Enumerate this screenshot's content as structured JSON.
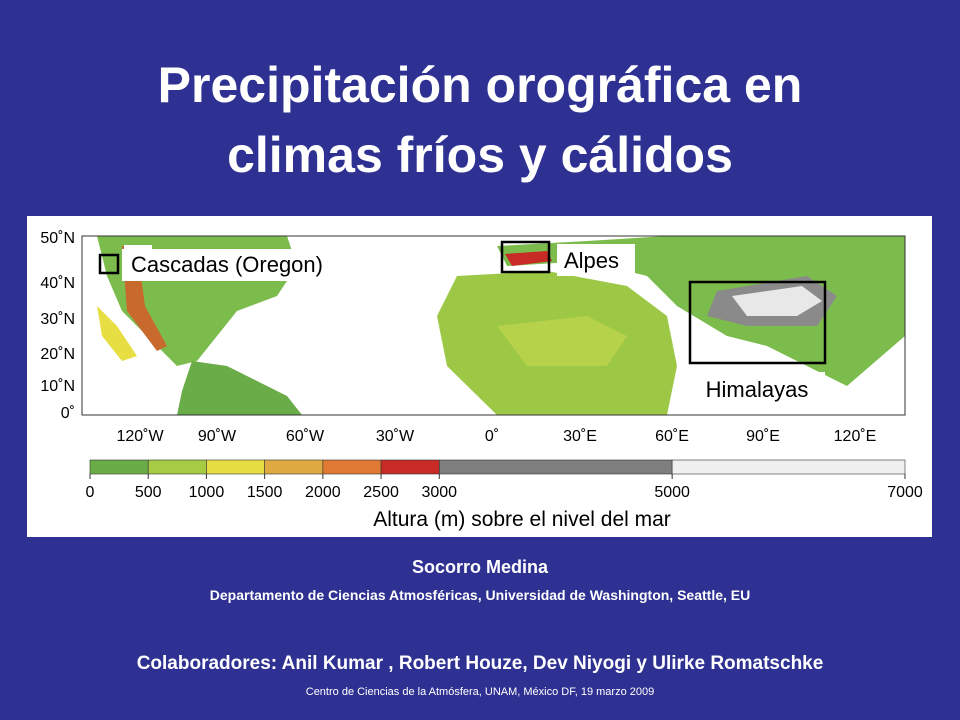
{
  "title": [
    "Precipitación orográfica en",
    "climas fríos y cálidos"
  ],
  "map": {
    "lat_labels": [
      "50˚N",
      "40˚N",
      "30˚N",
      "20˚N",
      "10˚N",
      "0˚"
    ],
    "lon_labels": [
      "120˚W",
      "90˚W",
      "60˚W",
      "30˚W",
      "0˚",
      "30˚E",
      "60˚E",
      "90˚E",
      "120˚E"
    ],
    "regions": [
      "Cascadas (Oregon)",
      "Alpes",
      "Himalayas"
    ]
  },
  "colorbar": {
    "ticks": [
      0,
      500,
      1000,
      1500,
      2000,
      2500,
      3000,
      5000,
      7000
    ],
    "colors": [
      "#6aac48",
      "#a6cc44",
      "#e6de42",
      "#e0aa42",
      "#e07a32",
      "#c82a26",
      "#7e7e7e",
      "#f0f0f0"
    ],
    "label": "Altura (m) sobre el nivel del mar"
  },
  "author": "Socorro Medina",
  "affiliation": "Departamento de Ciencias Atmosféricas, Universidad de Washington, Seattle, EU",
  "collaborators": "Colaboradores: Anil Kumar , Robert Houze, Dev Niyogi y Ulirke Romatschke",
  "footer": "Centro de Ciencias de la Atmósfera, UNAM, México DF, 19 marzo 2009"
}
